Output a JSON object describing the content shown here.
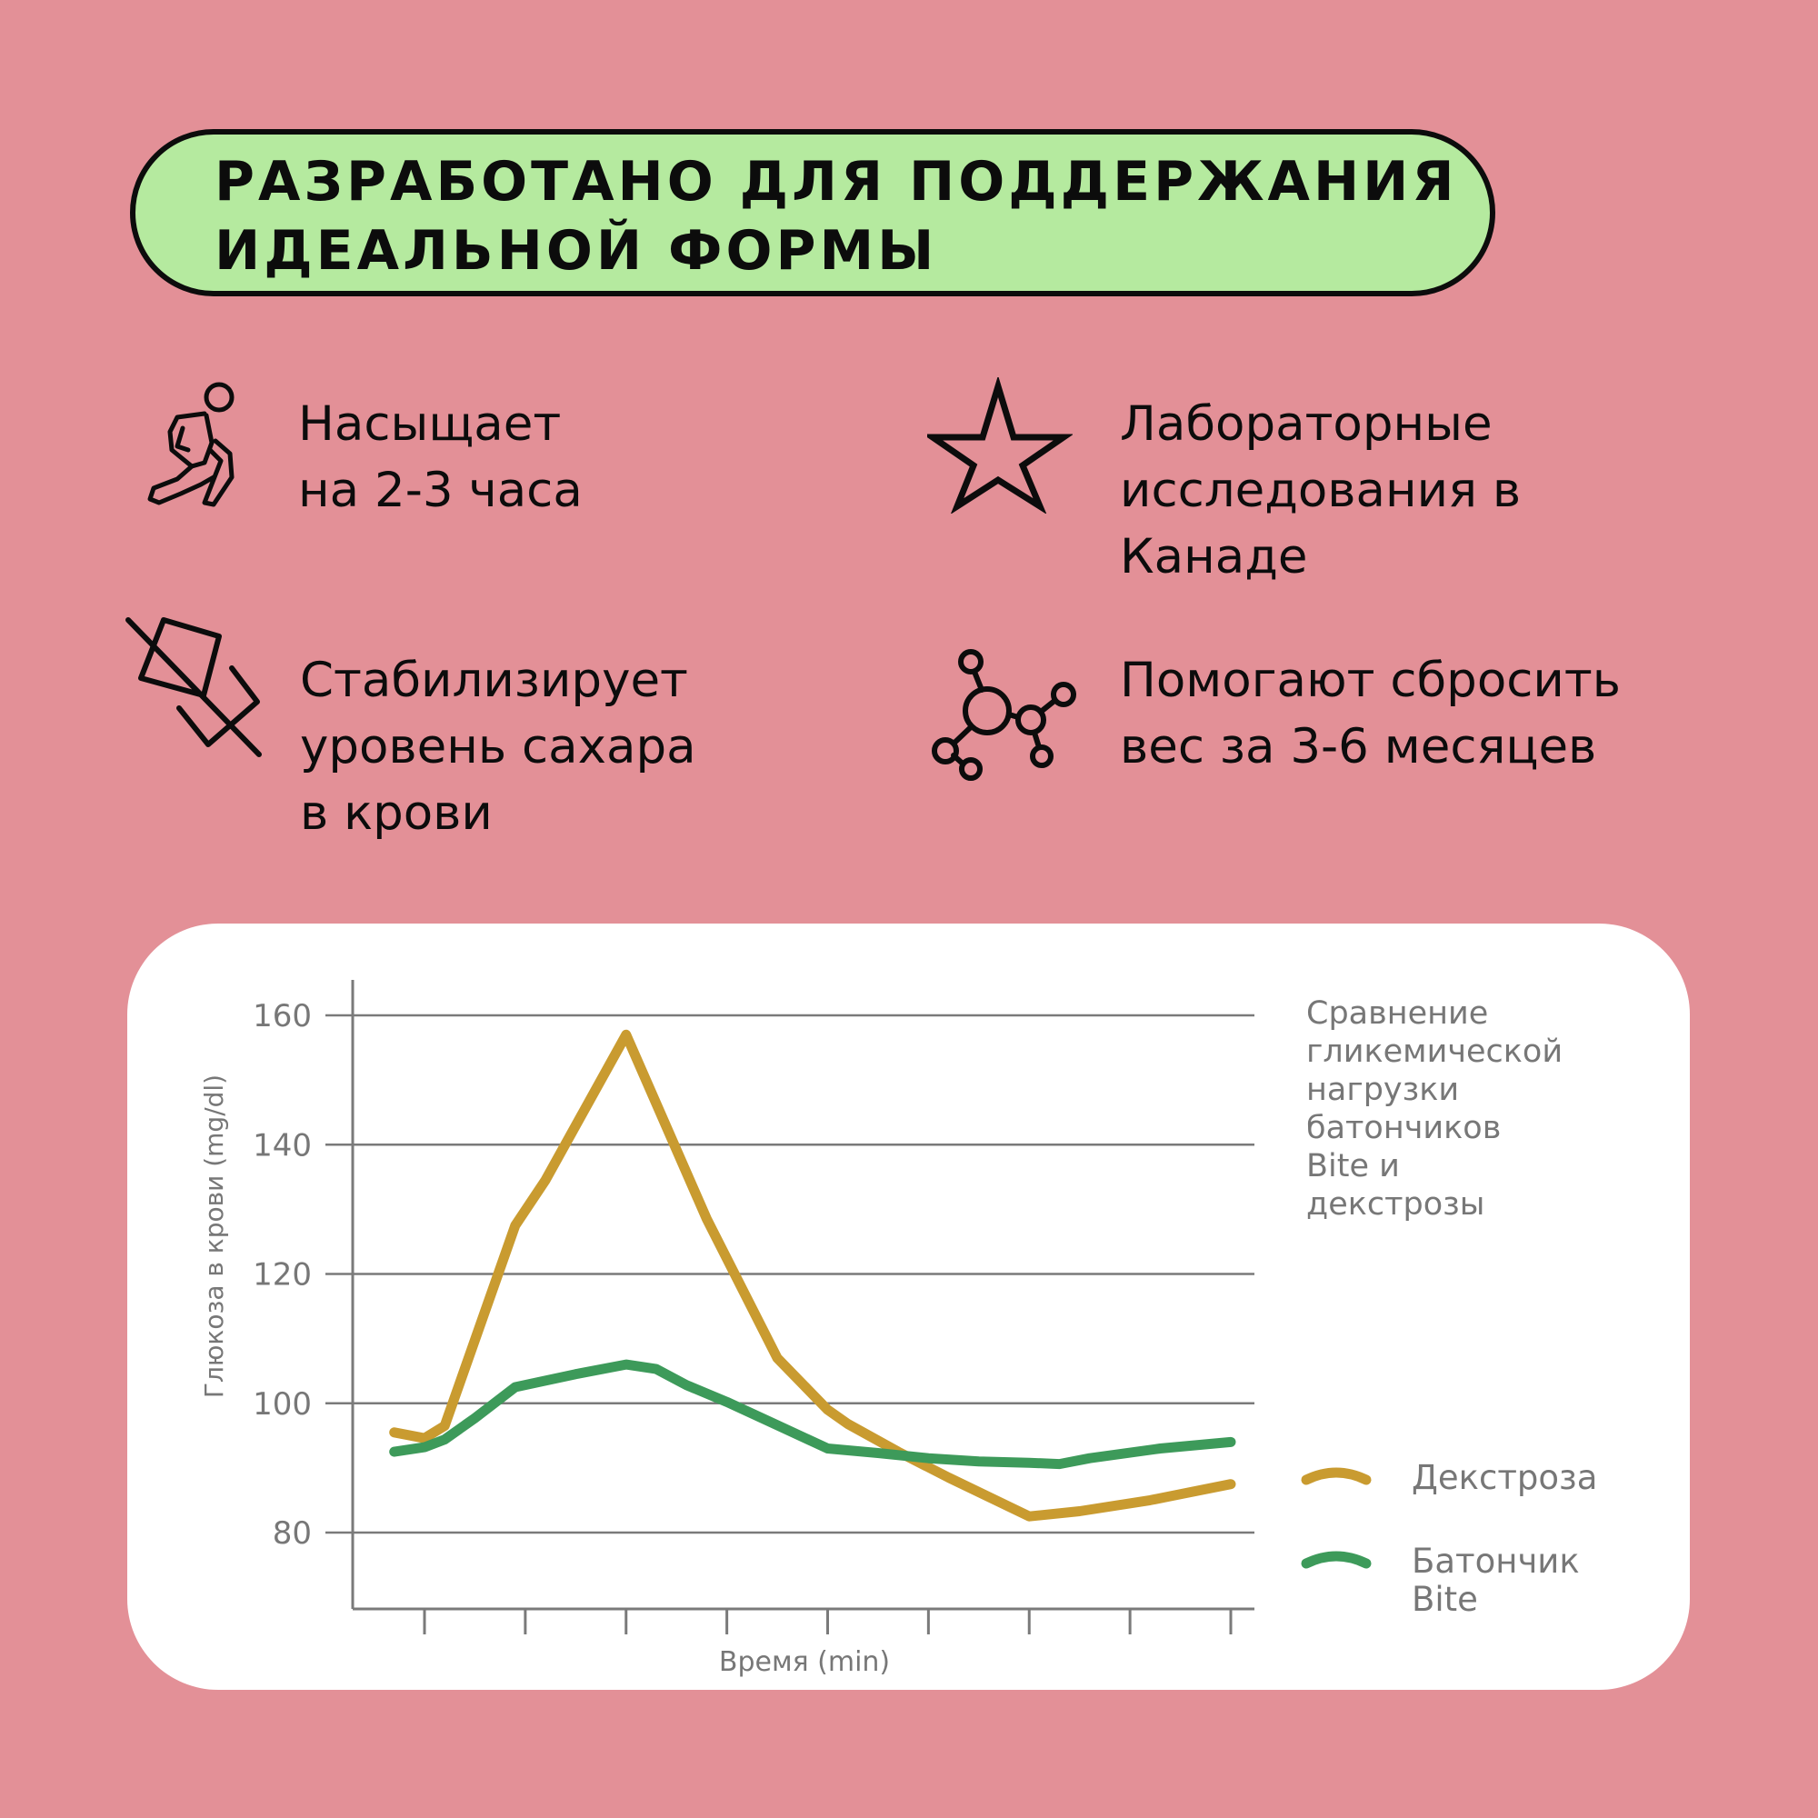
{
  "header": {
    "title_line1": "РАЗРАБОТАНО ДЛЯ ПОДДЕРЖАНИЯ",
    "title_line2": "ИДЕАЛЬНОЙ ФОРМЫ",
    "background_color": "#b5ea9f"
  },
  "features": [
    {
      "icon": "lunge-person-icon",
      "lines": [
        "Насыщает",
        "на 2-3 часа"
      ]
    },
    {
      "icon": "star-icon",
      "lines": [
        "Лабораторные",
        "исследования в",
        "Канаде"
      ]
    },
    {
      "icon": "no-sugar-cube-icon",
      "lines": [
        "Стабилизирует",
        "уровень сахара",
        "в крови"
      ]
    },
    {
      "icon": "molecule-icon",
      "lines": [
        "Помогают сбросить",
        "вес за 3-6 месяцев"
      ]
    }
  ],
  "colors": {
    "page_background": "#e39097",
    "dextrose": "#c99b30",
    "bite": "#3d9a5a",
    "grid": "#7a7a7a",
    "axis_text": "#777777"
  },
  "chart_data": {
    "type": "line",
    "title": "Сравнение гликемической нагрузки батончиков Bite и декстрозы",
    "title_lines": [
      "Сравнение",
      "гликемической",
      "нагрузки",
      "батончиков",
      "Bite и",
      "декстрозы"
    ],
    "xlabel": "Время (min)",
    "ylabel": "Глюкоза в крови (mg/dl)",
    "yticks": [
      80,
      100,
      120,
      140,
      160
    ],
    "ylim": [
      68,
      166
    ],
    "xlim": [
      -0.4,
      8.2
    ],
    "x_tick_count": 9,
    "grid": true,
    "legend_position": "bottom-right",
    "series": [
      {
        "name": "Декстроза",
        "color": "#c99b30",
        "x": [
          -0.3,
          0.0,
          0.2,
          0.9,
          1.2,
          2.0,
          2.8,
          3.5,
          4.0,
          4.2,
          4.7,
          5.2,
          6.0,
          6.5,
          7.2,
          8.0
        ],
        "y": [
          95.5,
          94.6,
          96.5,
          127.5,
          134.5,
          157.0,
          128.5,
          107.0,
          99.0,
          96.8,
          92.5,
          88.5,
          82.5,
          83.3,
          85.0,
          87.5
        ]
      },
      {
        "name": "Батончик\nBite",
        "name_lines": [
          "Батончик",
          "Bite"
        ],
        "color": "#3d9a5a",
        "x": [
          -0.3,
          0.0,
          0.2,
          0.5,
          0.9,
          1.5,
          2.0,
          2.3,
          2.6,
          3.0,
          3.5,
          4.0,
          4.5,
          5.0,
          5.5,
          6.0,
          6.3,
          6.6,
          7.3,
          8.0
        ],
        "y": [
          92.5,
          93.2,
          94.4,
          97.7,
          102.5,
          104.5,
          106.0,
          105.3,
          102.8,
          100.2,
          96.6,
          93.0,
          92.3,
          91.5,
          91.0,
          90.8,
          90.6,
          91.5,
          93.0,
          94.0
        ]
      }
    ]
  }
}
